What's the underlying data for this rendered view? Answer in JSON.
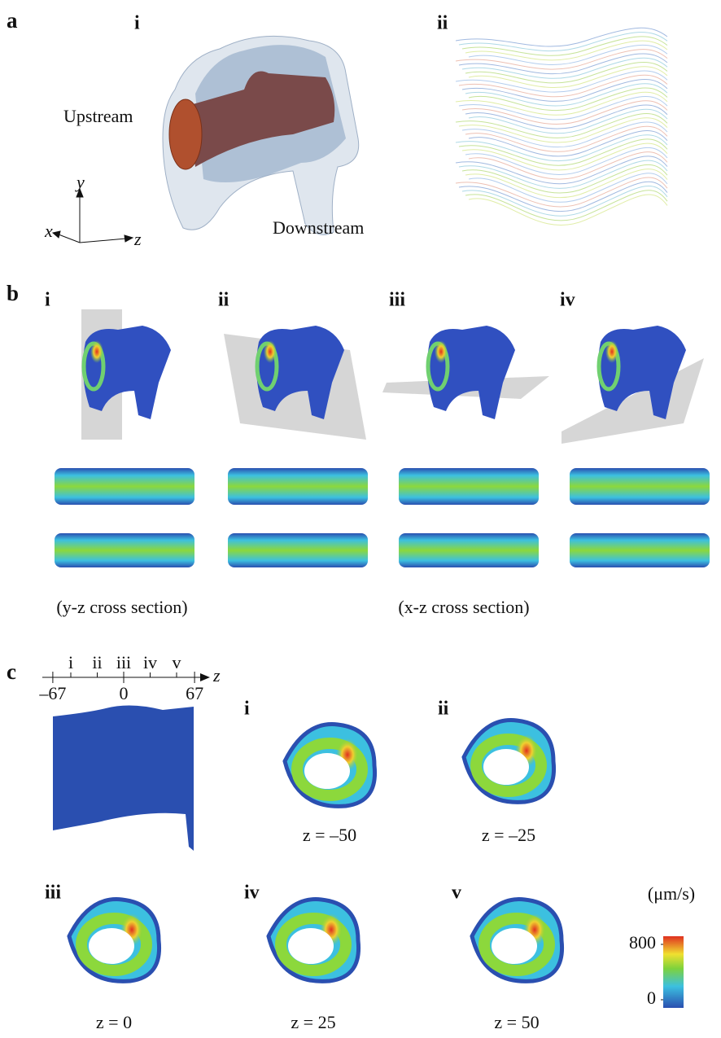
{
  "panel_a": {
    "label": "a",
    "sub_i": "i",
    "sub_ii": "ii",
    "upstream": "Upstream",
    "downstream": "Downstream",
    "axes": {
      "y": "y",
      "x": "x",
      "z": "z"
    }
  },
  "panel_b": {
    "label": "b",
    "subs": [
      "i",
      "ii",
      "iii",
      "iv"
    ],
    "captions": [
      "(y-z cross section)",
      "(x-z cross section)"
    ]
  },
  "panel_c": {
    "label": "c",
    "axis": {
      "name": "z",
      "ticks": [
        {
          "value": -67,
          "label": "–67"
        },
        0,
        67
      ],
      "markers": [
        {
          "value": -50,
          "label": "i"
        },
        {
          "value": -25,
          "label": "ii"
        },
        {
          "value": 0,
          "label": "iii"
        },
        {
          "value": 25,
          "label": "iv"
        },
        {
          "value": 50,
          "label": "v"
        }
      ]
    },
    "slices": [
      {
        "label": "i",
        "caption": "z = –50"
      },
      {
        "label": "ii",
        "caption": "z = –25"
      },
      {
        "label": "iii",
        "caption": "z = 0"
      },
      {
        "label": "iv",
        "caption": "z = 25"
      },
      {
        "label": "v",
        "caption": "z = 50"
      }
    ]
  },
  "colorbar": {
    "unit": "(μm/s)",
    "ticks": [
      0,
      800
    ]
  }
}
